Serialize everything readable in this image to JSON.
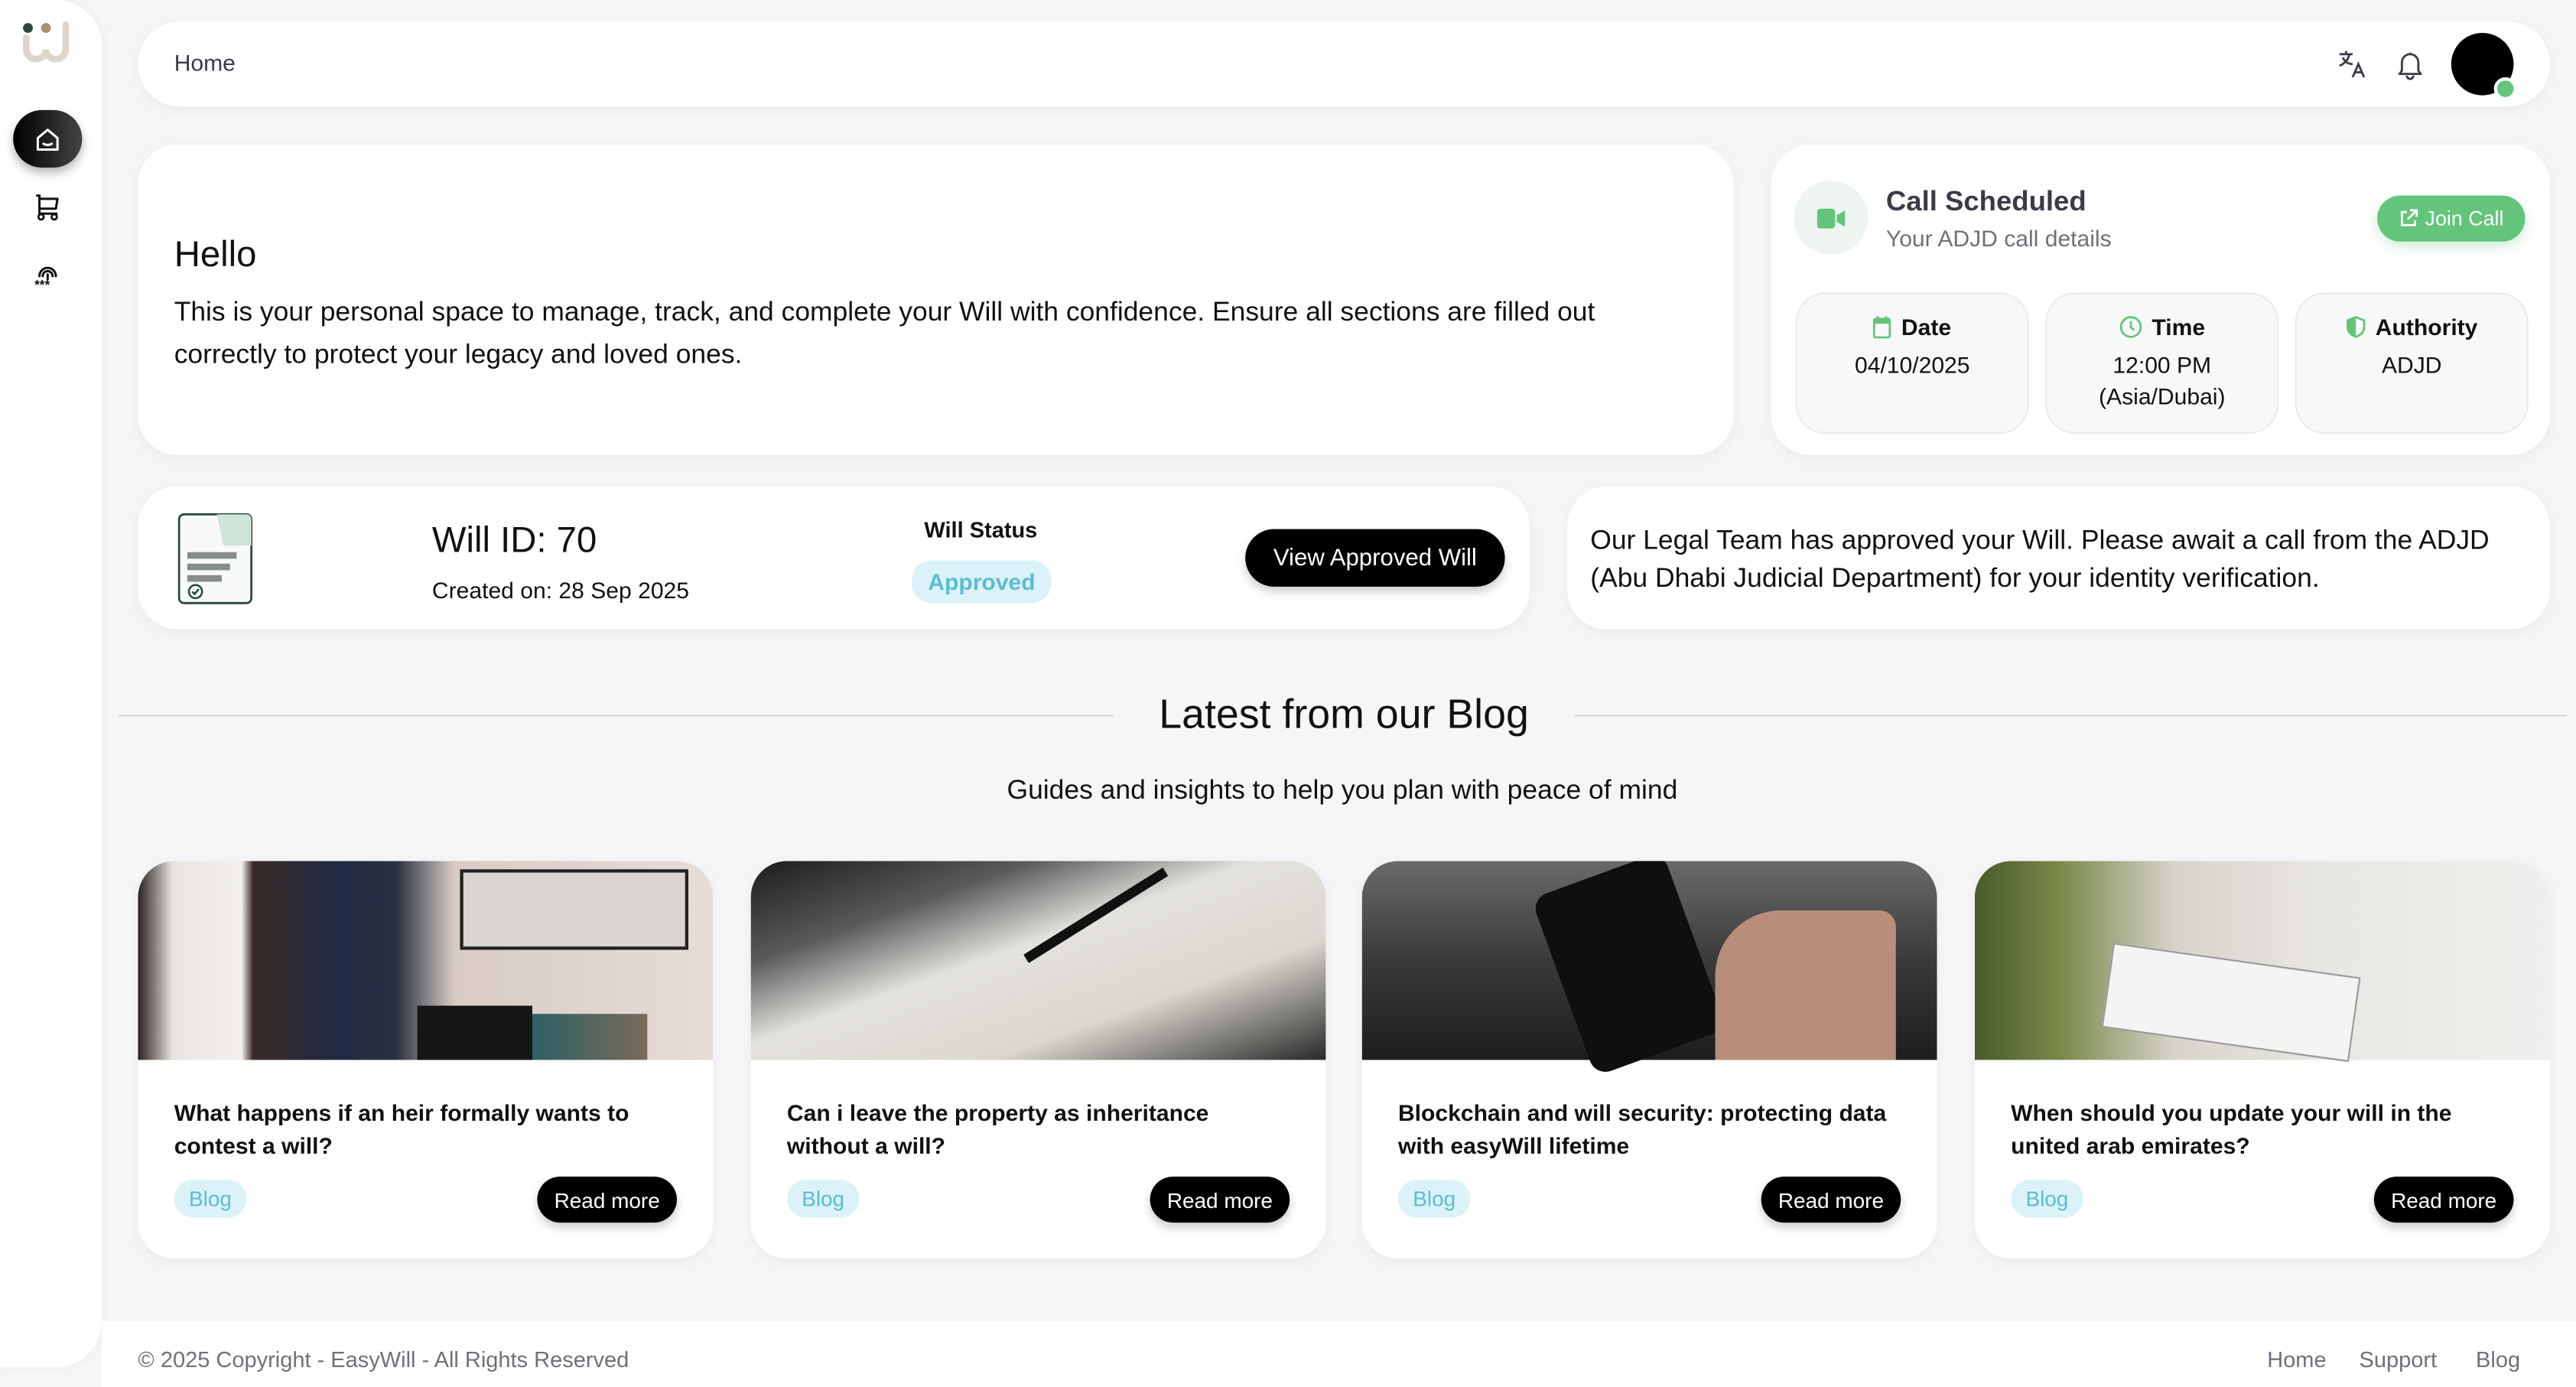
{
  "sidebar": {
    "items": [
      {
        "name": "home",
        "icon": "home-icon",
        "active": true
      },
      {
        "name": "store",
        "icon": "cart-icon"
      },
      {
        "name": "security",
        "icon": "fingerprint-password-icon"
      }
    ]
  },
  "header": {
    "breadcrumb": "Home",
    "icons": [
      "translate-icon",
      "bell-icon"
    ],
    "avatar_status_color": "#63c57a"
  },
  "welcome": {
    "title": "Hello",
    "text": "This is your personal space to manage, track, and complete your Will with confidence. Ensure all sections are filled out correctly to protect your legacy and loved ones."
  },
  "call": {
    "title": "Call Scheduled",
    "subtitle": "Your ADJD call details",
    "join_label": "Join Call",
    "accent": "#63c57a",
    "date_label": "Date",
    "date_value": "04/10/2025",
    "time_label": "Time",
    "time_value": "12:00 PM",
    "time_zone": "(Asia/Dubai)",
    "authority_label": "Authority",
    "authority_value": "ADJD"
  },
  "will": {
    "id_text": "Will ID: 70",
    "created": "Created on: 28 Sep 2025",
    "status_label": "Will Status",
    "status": "Approved",
    "status_color": "#5bbcd3",
    "view_label": "View Approved Will"
  },
  "notice": {
    "text": "Our Legal Team has approved your Will. Please await a call from the ADJD (Abu Dhabi Judicial Department) for your identity verification."
  },
  "blog": {
    "title": "Latest from our Blog",
    "subtitle": "Guides and insights to help you plan with peace of mind",
    "posts": [
      {
        "title": "What happens if an heir formally wants to contest a will?",
        "tag": "Blog",
        "cta": "Read more"
      },
      {
        "title": "Can i leave the property as inheritance without a will?",
        "tag": "Blog",
        "cta": "Read more"
      },
      {
        "title": "Blockchain and will security: protecting data with easyWill lifetime",
        "tag": "Blog",
        "cta": "Read more"
      },
      {
        "title": "When should you update your will in the united arab emirates?",
        "tag": "Blog",
        "cta": "Read more"
      }
    ]
  },
  "footer": {
    "copyright": "© 2025 Copyright - EasyWill - All Rights Reserved",
    "links": [
      "Home",
      "Support",
      "Blog"
    ]
  }
}
